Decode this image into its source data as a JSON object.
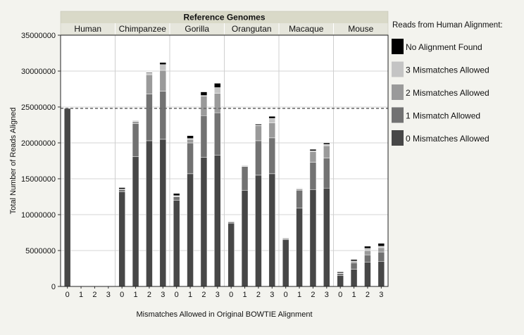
{
  "chart_data": {
    "type": "bar",
    "stacked": true,
    "facet_header": "Reference Genomes",
    "panels": [
      "Human",
      "Chimpanzee",
      "Gorilla",
      "Orangutan",
      "Macaque",
      "Mouse"
    ],
    "categories": [
      "0",
      "1",
      "2",
      "3"
    ],
    "xlabel": "Mismatches Allowed in Original BOWTIE Alignment",
    "ylabel": "Total Number of Reads Aligned",
    "ylim": [
      0,
      35000000
    ],
    "yticks": [
      "0",
      "5000000",
      "10000000",
      "15000000",
      "20000000",
      "25000000",
      "30000000",
      "35000000"
    ],
    "reference_line": 24800000,
    "legend_title": "Reads from Human Alignment:",
    "legend_position": "right",
    "grid": true,
    "series": [
      {
        "name": "0 Mismatches Allowed",
        "color": "#474747",
        "values": [
          [
            24800000,
            0,
            0,
            0
          ],
          [
            13200000,
            18100000,
            20300000,
            20500000
          ],
          [
            12000000,
            15700000,
            18000000,
            18300000
          ],
          [
            8800000,
            13400000,
            15500000,
            15700000
          ],
          [
            6500000,
            10900000,
            13500000,
            13700000
          ],
          [
            1500000,
            2400000,
            3400000,
            3500000
          ]
        ]
      },
      {
        "name": "1 Mismatch Allowed",
        "color": "#727272",
        "values": [
          [
            0,
            0,
            0,
            0
          ],
          [
            300000,
            4600000,
            6500000,
            6700000
          ],
          [
            500000,
            4300000,
            5800000,
            5900000
          ],
          [
            200000,
            3300000,
            4800000,
            5000000
          ],
          [
            200000,
            2500000,
            3800000,
            4200000
          ],
          [
            300000,
            900000,
            1000000,
            1300000
          ]
        ]
      },
      {
        "name": "2 Mismatches Allowed",
        "color": "#9a9a9a",
        "values": [
          [
            0,
            0,
            0,
            0
          ],
          [
            50000,
            300000,
            2700000,
            2900000
          ],
          [
            100000,
            500000,
            2700000,
            2700000
          ],
          [
            30000,
            100000,
            2100000,
            2100000
          ],
          [
            20000,
            200000,
            1500000,
            1700000
          ],
          [
            50000,
            200000,
            600000,
            600000
          ]
        ]
      },
      {
        "name": "3 Mismatches Allowed",
        "color": "#c4c4c4",
        "values": [
          [
            0,
            0,
            0,
            0
          ],
          [
            20000,
            50000,
            200000,
            800000
          ],
          [
            50000,
            100000,
            100000,
            800000
          ],
          [
            10000,
            20000,
            50000,
            600000
          ],
          [
            10000,
            20000,
            100000,
            200000
          ],
          [
            20000,
            50000,
            300000,
            200000
          ]
        ]
      },
      {
        "name": "No Alignment Found",
        "color": "#000000",
        "values": [
          [
            0,
            0,
            0,
            0
          ],
          [
            200000,
            50000,
            100000,
            300000
          ],
          [
            300000,
            400000,
            500000,
            600000
          ],
          [
            50000,
            50000,
            150000,
            300000
          ],
          [
            50000,
            50000,
            200000,
            200000
          ],
          [
            150000,
            200000,
            300000,
            400000
          ]
        ]
      }
    ]
  }
}
